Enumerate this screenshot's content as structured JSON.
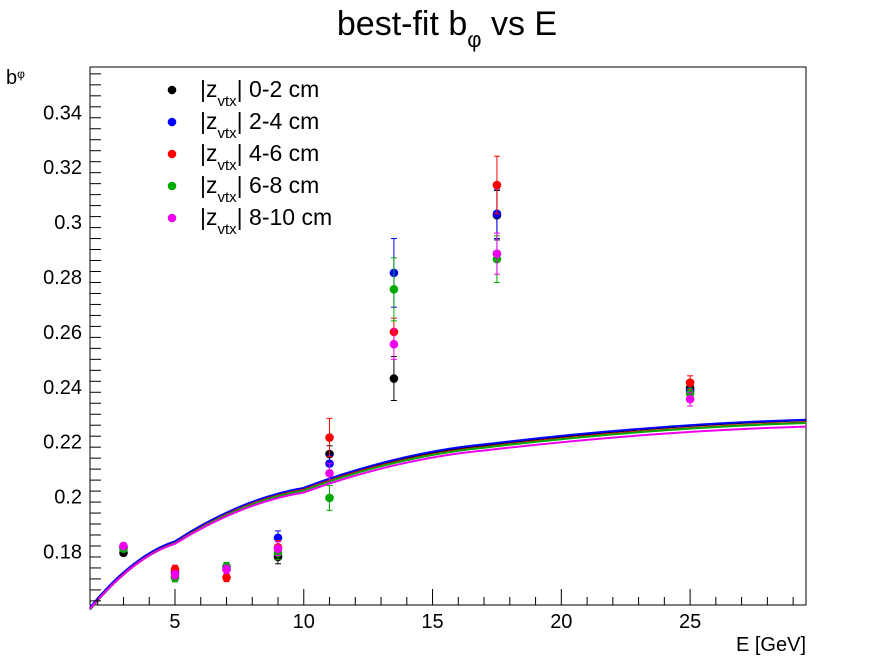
{
  "chart_data": {
    "type": "scatter",
    "title": {
      "main": "best-fit  b",
      "sub": "φ",
      "rest": "  vs  E"
    },
    "xlabel": "E  [GeV]",
    "ylabel": {
      "main": "b",
      "sub": "φ"
    },
    "xlim": [
      1.7,
      29.5
    ],
    "ylim": [
      0.1605,
      0.3565
    ],
    "xticks": [
      5,
      10,
      15,
      20,
      25
    ],
    "xtick_labels": [
      "5",
      "10",
      "15",
      "20",
      "25"
    ],
    "yticks": [
      0.18,
      0.2,
      0.22,
      0.24,
      0.26,
      0.28,
      0.3,
      0.32,
      0.34
    ],
    "ytick_labels": [
      "0.18",
      "0.2",
      "0.22",
      "0.24",
      "0.26",
      "0.28",
      "0.3",
      "0.32",
      "0.34"
    ],
    "grid": false,
    "legend_position": "top-left",
    "x": [
      3,
      5,
      7,
      9,
      11,
      13.5,
      17.5,
      25
    ],
    "series": [
      {
        "name": "|z_vtx| 0-2 cm",
        "legend": {
          "a": "|z",
          "sub": "vtx",
          "b": "| 0-2 cm"
        },
        "color": "#000000",
        "values": [
          0.1795,
          0.1705,
          0.1735,
          0.178,
          0.2155,
          0.243,
          0.3025,
          0.2395
        ],
        "errors": [
          0.001,
          0.0015,
          0.0015,
          0.0025,
          0.003,
          0.008,
          0.009,
          0.002
        ],
        "curve": [
          0.1593,
          0.1834,
          0.2028,
          0.2187,
          0.2278
        ]
      },
      {
        "name": "|z_vtx| 2-4 cm",
        "legend": {
          "a": "|z",
          "sub": "vtx",
          "b": "| 2-4 cm"
        },
        "color": "#0000ff",
        "values": [
          0.1815,
          0.1725,
          0.1745,
          0.185,
          0.212,
          0.2815,
          0.303,
          0.2385
        ],
        "errors": [
          0.001,
          0.0015,
          0.0015,
          0.0025,
          0.003,
          0.0125,
          0.009,
          0.002
        ],
        "curve": [
          0.1596,
          0.1837,
          0.2032,
          0.219,
          0.228
        ]
      },
      {
        "name": "|z_vtx| 4-6 cm",
        "legend": {
          "a": "|z",
          "sub": "vtx",
          "b": "| 4-6 cm"
        },
        "color": "#ff0000",
        "values": [
          0.1815,
          0.1735,
          0.1705,
          0.1815,
          0.2215,
          0.26,
          0.3135,
          0.2415
        ],
        "errors": [
          0.001,
          0.0015,
          0.0015,
          0.0025,
          0.007,
          0.005,
          0.0105,
          0.0025
        ],
        "curve": [
          0.159,
          0.183,
          0.2025,
          0.218,
          0.227
        ]
      },
      {
        "name": "|z_vtx| 6-8 cm",
        "legend": {
          "a": "|z",
          "sub": "vtx",
          "b": "| 6-8 cm"
        },
        "color": "#00aa00",
        "values": [
          0.181,
          0.1705,
          0.1745,
          0.1795,
          0.1995,
          0.2755,
          0.2865,
          0.2375
        ],
        "errors": [
          0.001,
          0.0015,
          0.0015,
          0.0025,
          0.0045,
          0.0115,
          0.0085,
          0.002
        ],
        "curve": [
          0.1588,
          0.1829,
          0.2022,
          0.2178,
          0.2268
        ]
      },
      {
        "name": "|z_vtx| 8-10 cm",
        "legend": {
          "a": "|z",
          "sub": "vtx",
          "b": "| 8-10 cm"
        },
        "color": "#ee00ee",
        "values": [
          0.182,
          0.1715,
          0.1735,
          0.181,
          0.2085,
          0.2555,
          0.2885,
          0.2355
        ],
        "errors": [
          0.001,
          0.0015,
          0.0015,
          0.0025,
          0.0035,
          0.0055,
          0.0075,
          0.0025
        ],
        "curve": [
          0.159,
          0.1828,
          0.2015,
          0.2168,
          0.2255
        ]
      }
    ],
    "curve_x": [
      1.7,
      5,
      10,
      17,
      29.5
    ]
  }
}
